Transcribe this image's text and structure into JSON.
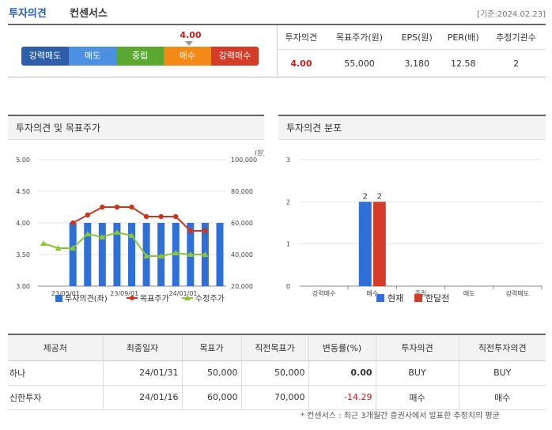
{
  "header": {
    "title": "투자의견",
    "subtitle": "컨센서스",
    "date": "[기준:2024.02.23]"
  },
  "rating_bar": {
    "labels": [
      "강력매도",
      "매도",
      "중립",
      "매수",
      "강력매수"
    ],
    "pointer_value": "4.00",
    "pointer_score": 4.0
  },
  "summary": {
    "headers": [
      "투자의견",
      "목표주가(원)",
      "EPS(원)",
      "PER(배)",
      "추정기관수"
    ],
    "values": [
      "4.00",
      "55,000",
      "3,180",
      "12.58",
      "2"
    ]
  },
  "panels": {
    "left_title": "투자의견 및 목표주가",
    "right_title": "투자의견 분포"
  },
  "chart_data": [
    {
      "type": "bar",
      "title": "투자의견 및 목표주가",
      "x_ticks": [
        "23/05/01",
        "23/09/01",
        "24/01/01"
      ],
      "y_left_ticks": [
        "5.00",
        "4.50",
        "4.00",
        "3.50",
        "3.00"
      ],
      "y_left_range": [
        3.0,
        5.0
      ],
      "y_right_ticks": [
        "100,000",
        "80,000",
        "60,000",
        "40,000",
        "20,000"
      ],
      "y_right_range": [
        20000,
        100000
      ],
      "y_right_unit": "(원)",
      "series": [
        {
          "name": "투자의견(좌)",
          "axis": "left",
          "kind": "bar",
          "values": [
            null,
            null,
            4.0,
            4.0,
            4.0,
            4.0,
            4.0,
            4.0,
            4.0,
            4.0,
            4.0,
            4.0,
            4.0
          ]
        },
        {
          "name": "목표주가",
          "axis": "right",
          "kind": "line",
          "values": [
            null,
            null,
            60000,
            65000,
            70000,
            70000,
            70000,
            64000,
            64000,
            64000,
            55000,
            55000,
            null
          ]
        },
        {
          "name": "수정주가",
          "axis": "right",
          "kind": "line",
          "values": [
            47000,
            44000,
            44000,
            53000,
            51000,
            54000,
            52000,
            39000,
            39000,
            41000,
            40000,
            40000,
            null
          ]
        }
      ],
      "colors": {
        "bar": "#2e6fd8",
        "target": "#c8361e",
        "price": "#8cc43a"
      }
    },
    {
      "type": "bar",
      "title": "투자의견 분포",
      "categories": [
        "강력매수",
        "매수",
        "중립",
        "매도",
        "강력매도"
      ],
      "ylim": [
        0,
        3
      ],
      "y_ticks": [
        "3",
        "2",
        "1",
        "0"
      ],
      "series": [
        {
          "name": "현재",
          "values": [
            0,
            2,
            0,
            0,
            0
          ],
          "labels": [
            "",
            "2",
            "",
            "",
            ""
          ]
        },
        {
          "name": "한달전",
          "values": [
            0,
            2,
            0,
            0,
            0
          ],
          "labels": [
            "",
            "2",
            "",
            "",
            ""
          ]
        }
      ],
      "colors": {
        "current": "#2e6fd8",
        "month_ago": "#d23c28"
      }
    }
  ],
  "detail_table": {
    "headers": [
      "제공처",
      "최종일자",
      "목표가",
      "직전목표가",
      "변동률(%)",
      "투자의견",
      "직전투자의견"
    ],
    "rows": [
      [
        "하나",
        "24/01/31",
        "50,000",
        "50,000",
        "0.00",
        "BUY",
        "BUY"
      ],
      [
        "신한투자",
        "24/01/16",
        "60,000",
        "70,000",
        "-14.29",
        "매수",
        "매수"
      ]
    ]
  },
  "footnote": "* 컨센서스 : 최근 3개월간 증권사에서 발표한 추정치의 평균"
}
